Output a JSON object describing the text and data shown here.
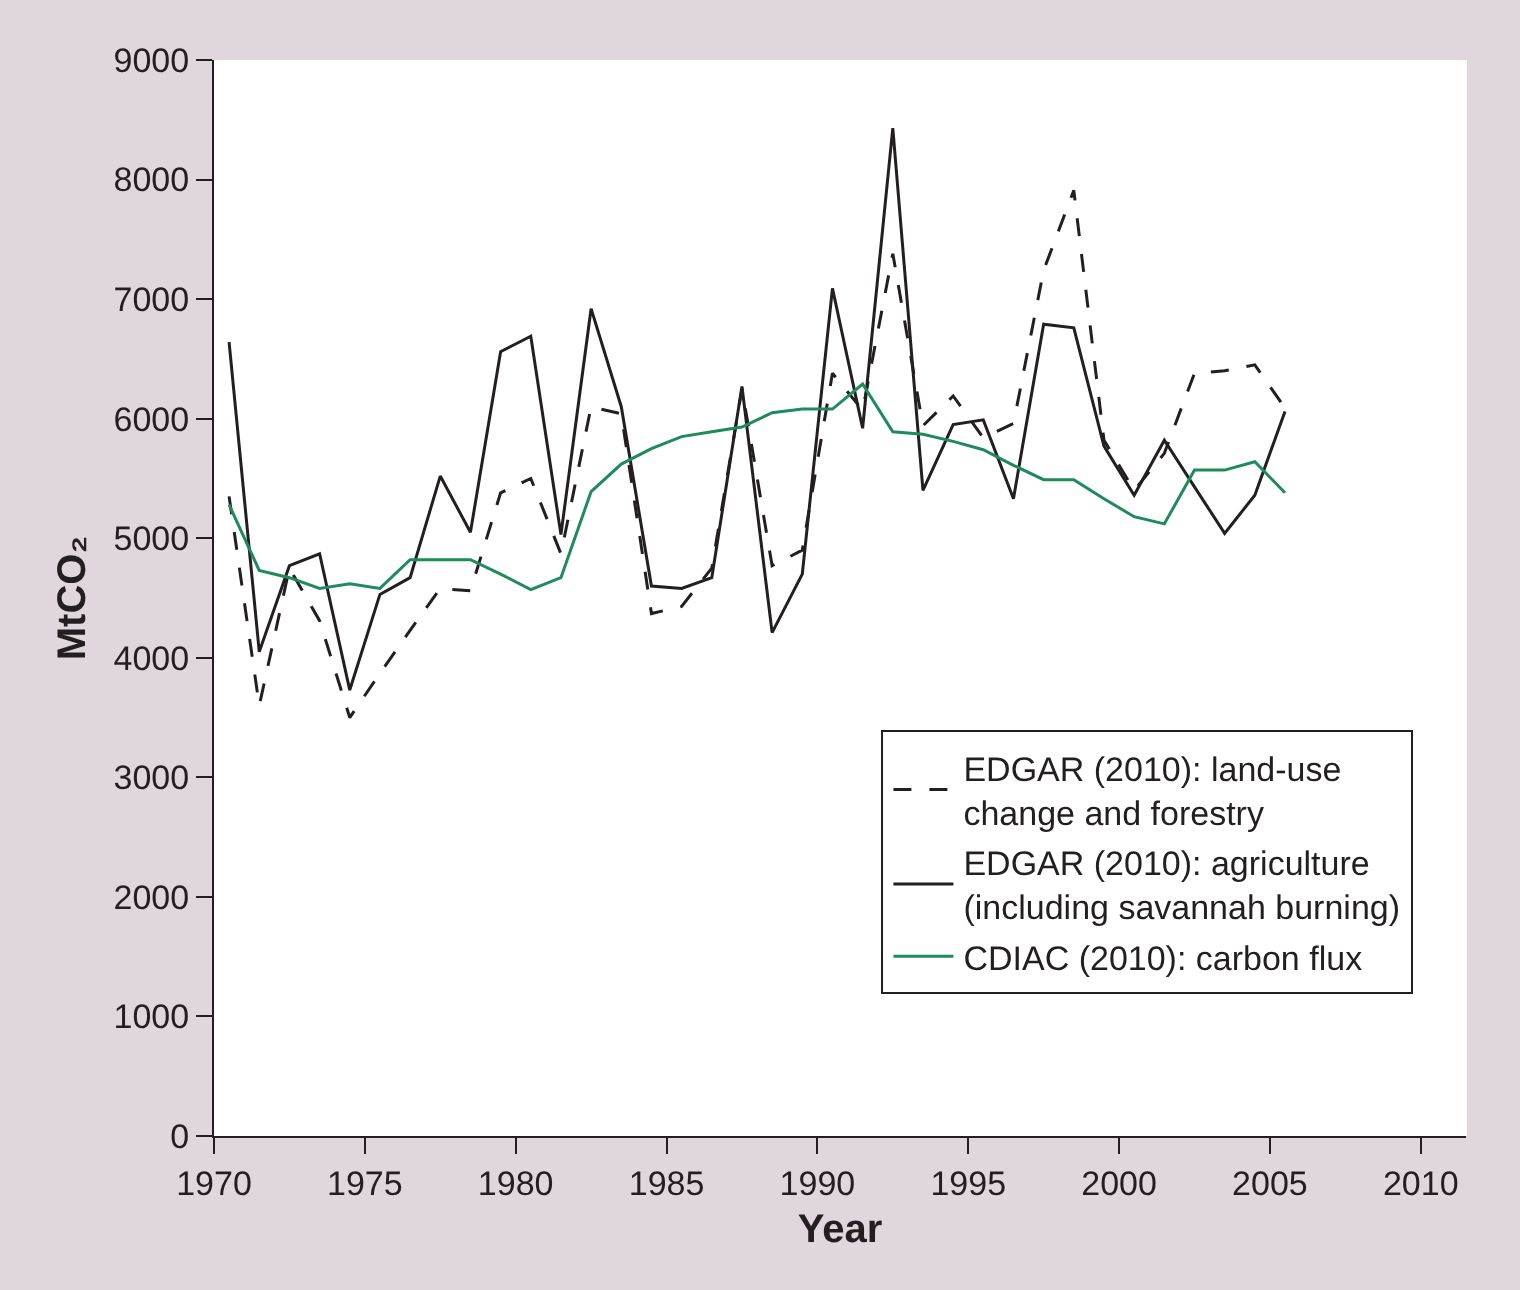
{
  "chart_data": {
    "type": "line",
    "xlabel": "Year",
    "ylabel": "MtCO₂",
    "x": [
      1970.5,
      1971.5,
      1972.5,
      1973.5,
      1974.5,
      1975.5,
      1976.5,
      1977.5,
      1978.5,
      1979.5,
      1980.5,
      1981.5,
      1982.5,
      1983.5,
      1984.5,
      1985.5,
      1986.5,
      1987.5,
      1988.5,
      1989.5,
      1990.5,
      1991.5,
      1992.5,
      1993.5,
      1994.5,
      1995.5,
      1996.5,
      1997.5,
      1998.5,
      1999.5,
      2000.5,
      2001.5,
      2002.5,
      2003.5,
      2004.5,
      2005.5
    ],
    "series": [
      {
        "name": "EDGAR (2010): land-use change and forestry",
        "color": "#231f20",
        "line_style": "dashed",
        "values": [
          5350,
          3600,
          4750,
          4310,
          3500,
          3870,
          4230,
          4580,
          4560,
          5380,
          5500,
          4870,
          6100,
          6040,
          4370,
          4430,
          4750,
          6250,
          4770,
          4900,
          6380,
          6070,
          7380,
          5940,
          6190,
          5840,
          5960,
          7240,
          7910,
          5820,
          5400,
          5710,
          6380,
          6400,
          6450,
          6090
        ]
      },
      {
        "name": "EDGAR (2010): agriculture (including savannah burning)",
        "color": "#231f20",
        "line_style": "solid",
        "values": [
          6640,
          4050,
          4770,
          4870,
          3730,
          4530,
          4670,
          5520,
          5050,
          6560,
          6690,
          5030,
          6920,
          6100,
          4600,
          4580,
          4670,
          6270,
          4210,
          4700,
          7090,
          5920,
          8430,
          5400,
          5950,
          5990,
          5330,
          6790,
          6760,
          5770,
          5360,
          5820,
          5430,
          5040,
          5360,
          6060
        ]
      },
      {
        "name": "CDIAC (2010): carbon flux",
        "color": "#1f8a5a",
        "line_style": "solid",
        "values": [
          5280,
          4730,
          4670,
          4580,
          4620,
          4580,
          4820,
          4820,
          4820,
          4700,
          4570,
          4670,
          5390,
          5620,
          5750,
          5850,
          5890,
          5930,
          6050,
          6080,
          6080,
          6290,
          5890,
          5870,
          5810,
          5740,
          5610,
          5490,
          5490,
          5330,
          5180,
          5120,
          5570,
          5570,
          5640,
          5380
        ]
      }
    ],
    "xlim": [
      1970,
      2011.5
    ],
    "xticks": [
      1970,
      1975,
      1980,
      1985,
      1990,
      1995,
      2000,
      2005,
      2010
    ],
    "ylim": [
      0,
      9000
    ],
    "yticks": [
      0,
      1000,
      2000,
      3000,
      4000,
      5000,
      6000,
      7000,
      8000,
      9000
    ],
    "grid": false,
    "legend": "bottom right",
    "marker": "none"
  }
}
